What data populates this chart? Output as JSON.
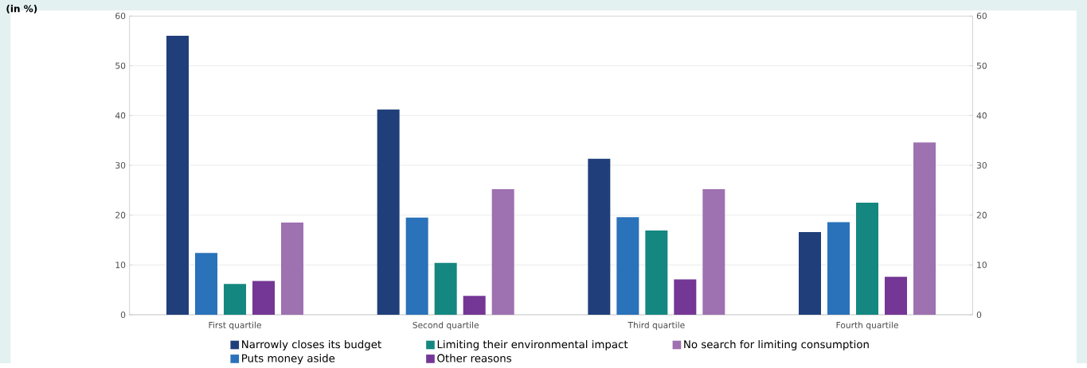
{
  "chart_data": {
    "type": "bar",
    "annotations": [
      "(in %)"
    ],
    "categories": [
      "First quartile",
      "Second quartile",
      "Third quartile",
      "Fourth quartile"
    ],
    "series": [
      {
        "name": "Narrowly closes its budget",
        "color": "#203f7a",
        "values": [
          56.0,
          41.2,
          31.3,
          16.6
        ]
      },
      {
        "name": "Puts money aside",
        "color": "#2a72b9",
        "values": [
          12.4,
          19.5,
          19.6,
          18.6
        ]
      },
      {
        "name": "Limiting their environmental impact",
        "color": "#148780",
        "values": [
          6.2,
          10.4,
          16.9,
          22.5
        ]
      },
      {
        "name": "Other reasons",
        "color": "#743795",
        "values": [
          6.8,
          3.8,
          7.1,
          7.6
        ]
      },
      {
        "name": "No search for limiting consumption",
        "color": "#9e71b0",
        "values": [
          18.5,
          25.2,
          25.2,
          34.6
        ]
      }
    ],
    "ylim": [
      0,
      60
    ],
    "yticks": [
      0,
      10,
      20,
      30,
      40,
      50,
      60
    ],
    "y2lim": [
      0,
      60
    ],
    "y2ticks": [
      0,
      10,
      20,
      30,
      40,
      50,
      60
    ],
    "grid": "y",
    "legend": "bottom"
  }
}
